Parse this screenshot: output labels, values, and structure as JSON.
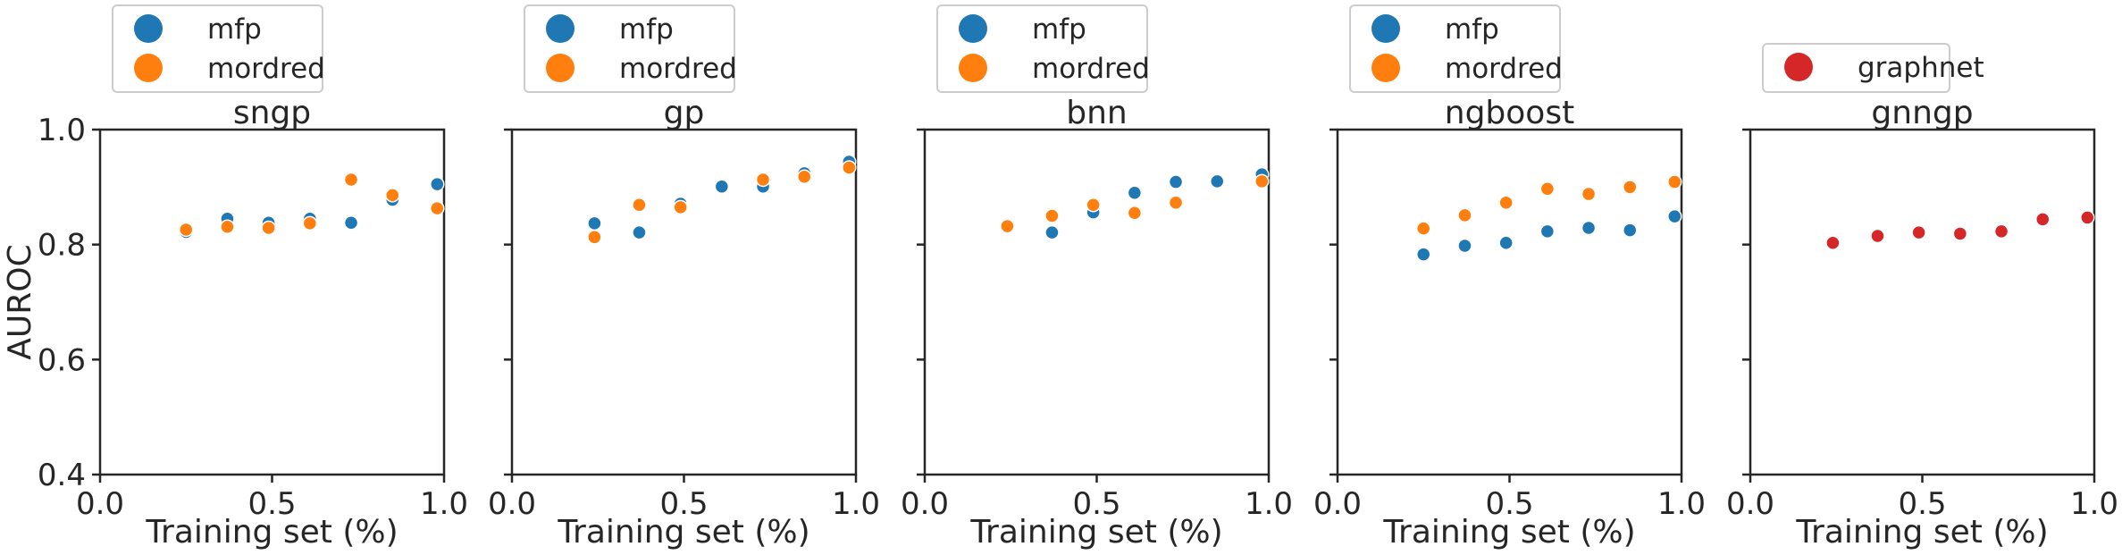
{
  "colors": {
    "mfp": "#1f77b4",
    "mordred": "#ff7f0e",
    "graphnet": "#d62728",
    "axis": "#262626",
    "legend_border": "#cccccc"
  },
  "chart_data": [
    {
      "type": "scatter",
      "title": "sngp",
      "xlabel": "Training set (%)",
      "ylabel": "AUROC",
      "xlim": [
        0.0,
        1.0
      ],
      "ylim": [
        0.4,
        1.0
      ],
      "xticks": [
        "0.0",
        "0.5",
        "1.0"
      ],
      "yticks": [
        "0.4",
        "0.6",
        "0.8",
        "1.0"
      ],
      "grid": false,
      "legend_position": "above",
      "series": [
        {
          "name": "mfp",
          "color": "#1f77b4",
          "x": [
            0.25,
            0.37,
            0.49,
            0.61,
            0.73,
            0.85,
            0.98
          ],
          "y": [
            0.822,
            0.845,
            0.838,
            0.845,
            0.838,
            0.878,
            0.905
          ]
        },
        {
          "name": "mordred",
          "color": "#ff7f0e",
          "x": [
            0.25,
            0.37,
            0.49,
            0.61,
            0.73,
            0.85,
            0.98
          ],
          "y": [
            0.826,
            0.831,
            0.829,
            0.837,
            0.913,
            0.886,
            0.863
          ]
        }
      ]
    },
    {
      "type": "scatter",
      "title": "gp",
      "xlabel": "Training set (%)",
      "ylabel": "",
      "xlim": [
        0.0,
        1.0
      ],
      "ylim": [
        0.4,
        1.0
      ],
      "xticks": [
        "0.0",
        "0.5",
        "1.0"
      ],
      "yticks": [],
      "grid": false,
      "legend_position": "above",
      "series": [
        {
          "name": "mfp",
          "color": "#1f77b4",
          "x": [
            0.24,
            0.37,
            0.49,
            0.61,
            0.73,
            0.85,
            0.98
          ],
          "y": [
            0.837,
            0.821,
            0.871,
            0.901,
            0.901,
            0.924,
            0.944
          ]
        },
        {
          "name": "mordred",
          "color": "#ff7f0e",
          "x": [
            0.24,
            0.37,
            0.49,
            0.73,
            0.85,
            0.98
          ],
          "y": [
            0.813,
            0.869,
            0.865,
            0.913,
            0.918,
            0.934
          ]
        }
      ]
    },
    {
      "type": "scatter",
      "title": "bnn",
      "xlabel": "Training set (%)",
      "ylabel": "",
      "xlim": [
        0.0,
        1.0
      ],
      "ylim": [
        0.4,
        1.0
      ],
      "xticks": [
        "0.0",
        "0.5",
        "1.0"
      ],
      "yticks": [],
      "grid": false,
      "legend_position": "above",
      "series": [
        {
          "name": "mfp",
          "color": "#1f77b4",
          "x": [
            0.37,
            0.49,
            0.61,
            0.73,
            0.85,
            0.98
          ],
          "y": [
            0.821,
            0.856,
            0.89,
            0.909,
            0.91,
            0.922
          ]
        },
        {
          "name": "mordred",
          "color": "#ff7f0e",
          "x": [
            0.24,
            0.37,
            0.49,
            0.61,
            0.73,
            0.98
          ],
          "y": [
            0.832,
            0.85,
            0.869,
            0.855,
            0.873,
            0.91
          ]
        }
      ]
    },
    {
      "type": "scatter",
      "title": "ngboost",
      "xlabel": "Training set (%)",
      "ylabel": "",
      "xlim": [
        0.0,
        1.0
      ],
      "ylim": [
        0.4,
        1.0
      ],
      "xticks": [
        "0.0",
        "0.5",
        "1.0"
      ],
      "yticks": [],
      "grid": false,
      "legend_position": "above",
      "series": [
        {
          "name": "mfp",
          "color": "#1f77b4",
          "x": [
            0.25,
            0.37,
            0.49,
            0.61,
            0.73,
            0.85,
            0.98
          ],
          "y": [
            0.783,
            0.798,
            0.803,
            0.823,
            0.829,
            0.825,
            0.849
          ]
        },
        {
          "name": "mordred",
          "color": "#ff7f0e",
          "x": [
            0.25,
            0.37,
            0.49,
            0.61,
            0.73,
            0.85,
            0.98
          ],
          "y": [
            0.828,
            0.851,
            0.873,
            0.897,
            0.888,
            0.9,
            0.909
          ]
        }
      ]
    },
    {
      "type": "scatter",
      "title": "gnngp",
      "xlabel": "Training set (%)",
      "ylabel": "",
      "xlim": [
        0.0,
        1.0
      ],
      "ylim": [
        0.4,
        1.0
      ],
      "xticks": [
        "0.0",
        "0.5",
        "1.0"
      ],
      "yticks": [],
      "grid": false,
      "legend_position": "above",
      "series": [
        {
          "name": "graphnet",
          "color": "#d62728",
          "x": [
            0.24,
            0.37,
            0.49,
            0.61,
            0.73,
            0.85,
            0.98
          ],
          "y": [
            0.803,
            0.815,
            0.821,
            0.819,
            0.823,
            0.844,
            0.847
          ]
        }
      ]
    }
  ]
}
